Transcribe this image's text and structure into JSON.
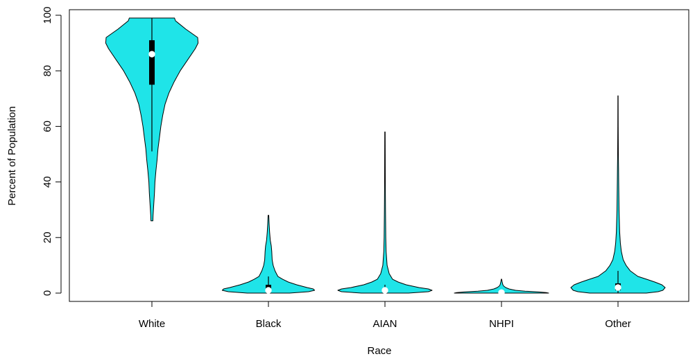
{
  "chart_data": {
    "type": "violin",
    "title": "",
    "xlabel": "Race",
    "ylabel": "Percent of Population",
    "ylim": [
      0,
      100
    ],
    "yticks": [
      0,
      20,
      40,
      60,
      80,
      100
    ],
    "categories": [
      "White",
      "Black",
      "AIAN",
      "NHPI",
      "Other"
    ],
    "fill_color": "#1fe4e8",
    "series": [
      {
        "category": "White",
        "min": 26,
        "max": 99,
        "q1": 75,
        "median": 86,
        "q3": 91,
        "whisker_low": 51,
        "whisker_high": 99,
        "density": [
          [
            26,
            0.02
          ],
          [
            28,
            0.025
          ],
          [
            32,
            0.04
          ],
          [
            36,
            0.055
          ],
          [
            40,
            0.065
          ],
          [
            44,
            0.085
          ],
          [
            48,
            0.11
          ],
          [
            52,
            0.13
          ],
          [
            56,
            0.16
          ],
          [
            60,
            0.19
          ],
          [
            64,
            0.23
          ],
          [
            68,
            0.28
          ],
          [
            72,
            0.36
          ],
          [
            76,
            0.47
          ],
          [
            80,
            0.6
          ],
          [
            84,
            0.76
          ],
          [
            88,
            0.92
          ],
          [
            90,
            0.98
          ],
          [
            92,
            0.97
          ],
          [
            95,
            0.72
          ],
          [
            98,
            0.5
          ],
          [
            99,
            0.48
          ]
        ]
      },
      {
        "category": "Black",
        "min": 0,
        "max": 28,
        "q1": 1,
        "median": 1,
        "q3": 3,
        "whisker_low": 0,
        "whisker_high": 6,
        "density": [
          [
            0,
            0.45
          ],
          [
            0.5,
            0.85
          ],
          [
            1,
            0.98
          ],
          [
            1.5,
            0.95
          ],
          [
            2,
            0.82
          ],
          [
            3,
            0.6
          ],
          [
            4,
            0.42
          ],
          [
            5,
            0.3
          ],
          [
            6,
            0.2
          ],
          [
            8,
            0.14
          ],
          [
            10,
            0.1
          ],
          [
            12,
            0.08
          ],
          [
            15,
            0.07
          ],
          [
            17,
            0.06
          ],
          [
            19,
            0.04
          ],
          [
            22,
            0.025
          ],
          [
            25,
            0.015
          ],
          [
            28,
            0.008
          ]
        ]
      },
      {
        "category": "AIAN",
        "min": 0,
        "max": 58,
        "q1": 0.5,
        "median": 1,
        "q3": 1.5,
        "whisker_low": 0,
        "whisker_high": 3,
        "density": [
          [
            0,
            0.5
          ],
          [
            0.5,
            0.92
          ],
          [
            1,
            1
          ],
          [
            1.5,
            0.92
          ],
          [
            2,
            0.72
          ],
          [
            3,
            0.45
          ],
          [
            4,
            0.28
          ],
          [
            5,
            0.16
          ],
          [
            7,
            0.09
          ],
          [
            10,
            0.045
          ],
          [
            15,
            0.025
          ],
          [
            20,
            0.018
          ],
          [
            30,
            0.012
          ],
          [
            40,
            0.008
          ],
          [
            50,
            0.006
          ],
          [
            58,
            0.004
          ]
        ]
      },
      {
        "category": "NHPI",
        "min": 0,
        "max": 5,
        "q1": 0,
        "median": 0.2,
        "q3": 0.4,
        "whisker_low": 0,
        "whisker_high": 1,
        "density": [
          [
            0,
            1
          ],
          [
            0.2,
            0.95
          ],
          [
            0.4,
            0.8
          ],
          [
            0.7,
            0.5
          ],
          [
            1,
            0.3
          ],
          [
            1.5,
            0.16
          ],
          [
            2,
            0.09
          ],
          [
            2.5,
            0.05
          ],
          [
            3,
            0.03
          ],
          [
            4,
            0.015
          ],
          [
            5,
            0.005
          ]
        ]
      },
      {
        "category": "Other",
        "min": 0,
        "max": 71,
        "q1": 1,
        "median": 2,
        "q3": 3.5,
        "whisker_low": 0,
        "whisker_high": 8,
        "density": [
          [
            0,
            0.6
          ],
          [
            0.5,
            0.85
          ],
          [
            1,
            0.95
          ],
          [
            2,
            1
          ],
          [
            3,
            0.93
          ],
          [
            4,
            0.78
          ],
          [
            5,
            0.6
          ],
          [
            6,
            0.42
          ],
          [
            8,
            0.26
          ],
          [
            10,
            0.17
          ],
          [
            12,
            0.11
          ],
          [
            15,
            0.07
          ],
          [
            18,
            0.05
          ],
          [
            22,
            0.035
          ],
          [
            30,
            0.022
          ],
          [
            40,
            0.014
          ],
          [
            45,
            0.012
          ],
          [
            50,
            0.008
          ],
          [
            60,
            0.005
          ],
          [
            71,
            0.003
          ]
        ]
      }
    ]
  }
}
